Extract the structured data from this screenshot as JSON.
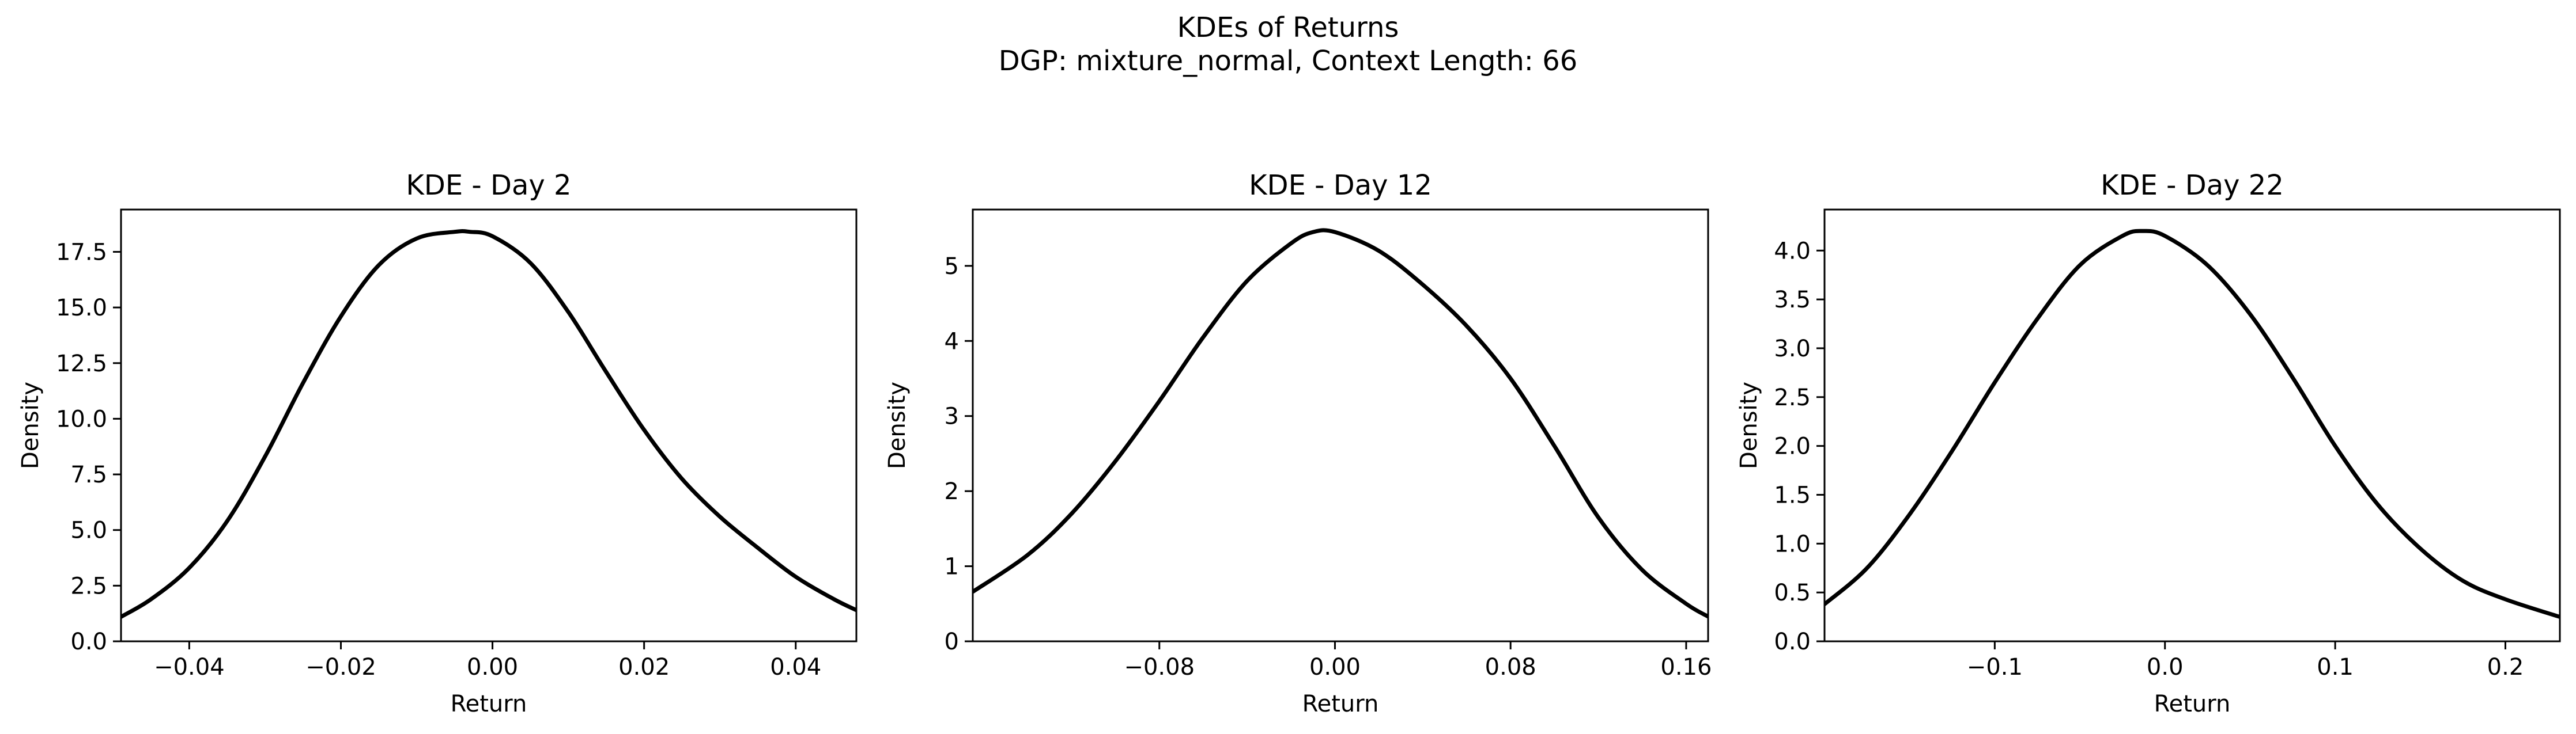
{
  "figure": {
    "title_line1": "KDEs of Returns",
    "title_line2": "DGP: mixture_normal, Context Length: 66"
  },
  "chart_data": [
    {
      "type": "line",
      "title": "KDE - Day 2",
      "xlabel": "Return",
      "ylabel": "Density",
      "xlim": [
        -0.049,
        0.048
      ],
      "ylim": [
        0,
        19.4
      ],
      "xticks": [
        -0.04,
        -0.02,
        0.0,
        0.02,
        0.04
      ],
      "xtick_labels": [
        "−0.04",
        "−0.02",
        "0.00",
        "0.02",
        "0.04"
      ],
      "yticks": [
        0,
        2.5,
        5,
        7.5,
        10,
        12.5,
        15,
        17.5
      ],
      "ytick_labels": [
        "0.0",
        "2.5",
        "5.0",
        "7.5",
        "10.0",
        "12.5",
        "15.0",
        "17.5"
      ],
      "grid": false,
      "series": [
        {
          "color": "#000000",
          "x": [
            -0.049,
            -0.045,
            -0.04,
            -0.035,
            -0.03,
            -0.025,
            -0.02,
            -0.015,
            -0.01,
            -0.005,
            -0.003,
            0.0,
            0.005,
            0.01,
            0.015,
            0.02,
            0.025,
            0.03,
            0.035,
            0.04,
            0.045,
            0.048
          ],
          "y": [
            1.1,
            1.9,
            3.3,
            5.4,
            8.3,
            11.6,
            14.6,
            16.9,
            18.1,
            18.4,
            18.4,
            18.2,
            17.0,
            14.8,
            12.1,
            9.5,
            7.3,
            5.6,
            4.2,
            2.9,
            1.9,
            1.4
          ]
        }
      ]
    },
    {
      "type": "line",
      "title": "KDE - Day 12",
      "xlabel": "Return",
      "ylabel": "Density",
      "xlim": [
        -0.165,
        0.17
      ],
      "ylim": [
        0,
        5.75
      ],
      "xticks": [
        -0.08,
        0.0,
        0.08,
        0.16
      ],
      "xtick_labels": [
        "−0.08",
        "0.00",
        "0.08",
        "0.16"
      ],
      "yticks": [
        0,
        1,
        2,
        3,
        4,
        5
      ],
      "ytick_labels": [
        "0",
        "1",
        "2",
        "3",
        "4",
        "5"
      ],
      "grid": false,
      "series": [
        {
          "color": "#000000",
          "x": [
            -0.165,
            -0.14,
            -0.12,
            -0.1,
            -0.08,
            -0.06,
            -0.04,
            -0.02,
            -0.01,
            0.0,
            0.02,
            0.04,
            0.06,
            0.08,
            0.1,
            0.12,
            0.14,
            0.16,
            0.17
          ],
          "y": [
            0.66,
            1.15,
            1.7,
            2.4,
            3.2,
            4.05,
            4.8,
            5.3,
            5.45,
            5.45,
            5.2,
            4.75,
            4.2,
            3.5,
            2.6,
            1.65,
            0.95,
            0.5,
            0.33
          ]
        }
      ]
    },
    {
      "type": "line",
      "title": "KDE - Day 22",
      "xlabel": "Return",
      "ylabel": "Density",
      "xlim": [
        -0.2,
        0.232
      ],
      "ylim": [
        0,
        4.42
      ],
      "xticks": [
        -0.1,
        0.0,
        0.1,
        0.2
      ],
      "xtick_labels": [
        "−0.1",
        "0.0",
        "0.1",
        "0.2"
      ],
      "yticks": [
        0,
        0.5,
        1,
        1.5,
        2,
        2.5,
        3,
        3.5,
        4
      ],
      "ytick_labels": [
        "0.0",
        "0.5",
        "1.0",
        "1.5",
        "2.0",
        "2.5",
        "3.0",
        "3.5",
        "4.0"
      ],
      "grid": false,
      "series": [
        {
          "color": "#000000",
          "x": [
            -0.2,
            -0.175,
            -0.15,
            -0.125,
            -0.1,
            -0.075,
            -0.05,
            -0.025,
            -0.013,
            0.0,
            0.025,
            0.05,
            0.075,
            0.1,
            0.125,
            0.15,
            0.175,
            0.2,
            0.232
          ],
          "y": [
            0.38,
            0.75,
            1.3,
            1.95,
            2.65,
            3.3,
            3.85,
            4.15,
            4.2,
            4.15,
            3.85,
            3.35,
            2.7,
            2.0,
            1.4,
            0.95,
            0.62,
            0.43,
            0.25
          ]
        }
      ]
    }
  ]
}
